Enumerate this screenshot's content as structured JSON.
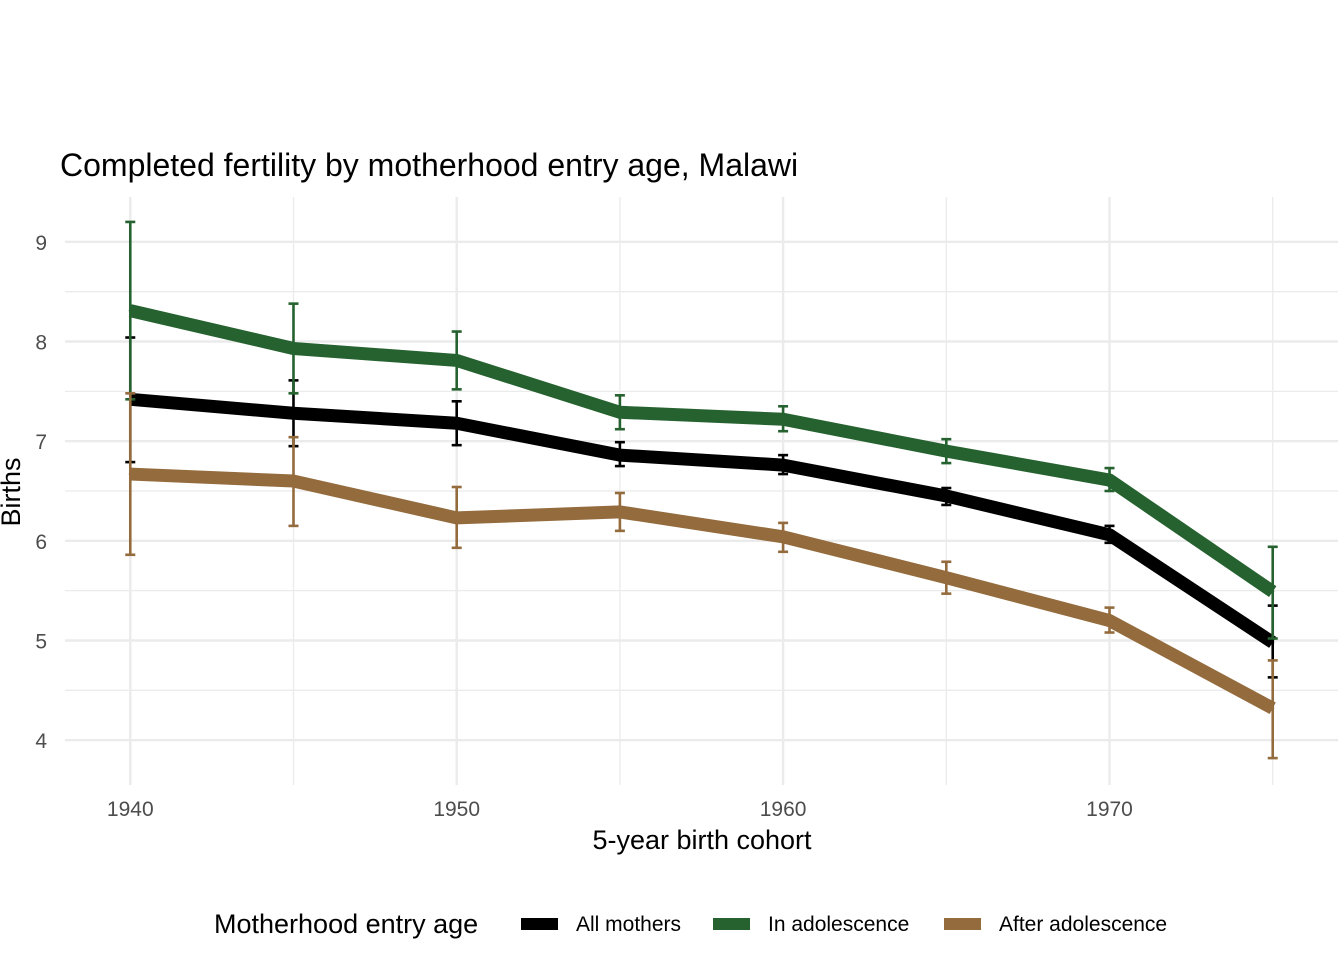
{
  "chart_data": {
    "type": "line",
    "title": "Completed fertility by motherhood entry age,  Malawi",
    "xlabel": "5-year birth cohort",
    "ylabel": "Births",
    "x": [
      1940,
      1945,
      1950,
      1955,
      1960,
      1965,
      1970,
      1975
    ],
    "x_ticks": [
      "1940",
      "1950",
      "1960",
      "1970"
    ],
    "y_ticks": [
      "4",
      "5",
      "6",
      "7",
      "8",
      "9"
    ],
    "xlim": [
      1938,
      1977
    ],
    "ylim": [
      3.55,
      9.45
    ],
    "grid": true,
    "legend": {
      "title": "Motherhood entry age",
      "position": "bottom"
    },
    "series": [
      {
        "name": "All mothers",
        "color": "#000000",
        "values": [
          7.42,
          7.28,
          7.18,
          6.86,
          6.76,
          6.45,
          6.06,
          4.98
        ],
        "ci_low": [
          6.79,
          6.95,
          6.96,
          6.75,
          6.67,
          6.36,
          5.98,
          4.63
        ],
        "ci_high": [
          8.04,
          7.61,
          7.4,
          6.99,
          6.86,
          6.53,
          6.15,
          5.35
        ]
      },
      {
        "name": "In adolescence",
        "color": "#26622f",
        "values": [
          8.31,
          7.93,
          7.81,
          7.29,
          7.22,
          6.9,
          6.61,
          5.49
        ],
        "ci_low": [
          7.42,
          7.48,
          7.52,
          7.12,
          7.1,
          6.78,
          6.5,
          5.02
        ],
        "ci_high": [
          9.2,
          8.38,
          8.1,
          7.46,
          7.35,
          7.02,
          6.73,
          5.94
        ]
      },
      {
        "name": "After adolescence",
        "color": "#946b3d",
        "values": [
          6.67,
          6.6,
          6.23,
          6.29,
          6.04,
          5.63,
          5.2,
          4.32
        ],
        "ci_low": [
          5.86,
          6.15,
          5.93,
          6.1,
          5.89,
          5.47,
          5.08,
          3.82
        ],
        "ci_high": [
          7.48,
          7.04,
          6.54,
          6.48,
          6.18,
          5.79,
          5.33,
          4.8
        ]
      }
    ]
  }
}
